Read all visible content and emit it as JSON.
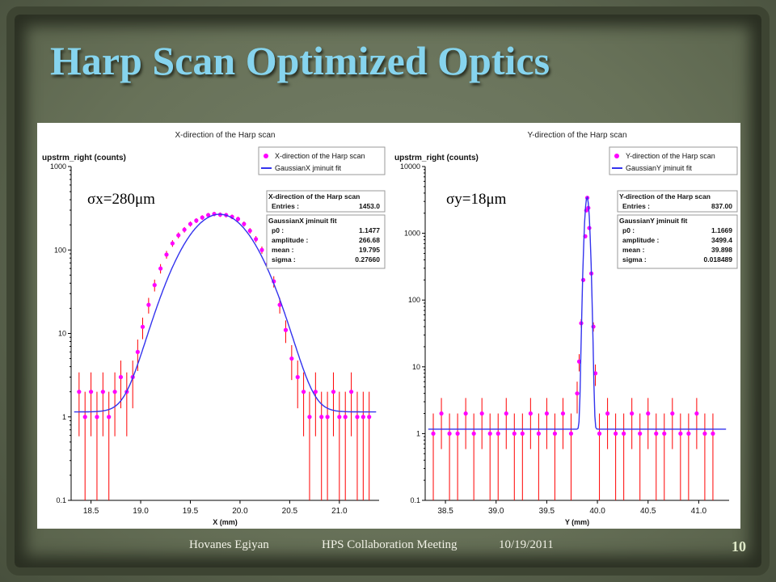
{
  "slide": {
    "title": "Harp Scan Optimized Optics",
    "footer_author": "Hovanes Egiyan",
    "footer_meeting": "HPS Collaboration Meeting",
    "footer_date": "10/19/2011",
    "page_number": "10"
  },
  "colors": {
    "title": "#86d4ee",
    "data_points": "#ff00ff",
    "error_bars": "#ff0000",
    "fit_line": "#3333ee"
  },
  "chart_data": [
    {
      "type": "scatter",
      "title": "X-direction of the Harp scan",
      "ylabel": "upstrm_right (counts)",
      "xlabel": "X (mm)",
      "log_y": true,
      "ylim": [
        0.1,
        1000
      ],
      "xlim": [
        18.3,
        21.4
      ],
      "xticks": [
        "18.5",
        "19.0",
        "19.5",
        "20.0",
        "20.5",
        "21.0"
      ],
      "yticks": [
        "0.1",
        "1",
        "10",
        "100",
        "1000"
      ],
      "annotation": "σx=280μm",
      "legend": {
        "placement": "top-right",
        "entries": [
          "X-direction of the Harp scan",
          "GaussianX jminuit fit"
        ]
      },
      "stats_box": {
        "title": "X-direction of the Harp scan",
        "rows": [
          {
            "label": "Entries :",
            "value": "1453.0"
          }
        ]
      },
      "fit_box": {
        "title": "GaussianX jminuit fit",
        "rows": [
          {
            "label": "p0 :",
            "value": "1.1477"
          },
          {
            "label": "amplitude :",
            "value": "266.68"
          },
          {
            "label": "mean :",
            "value": "19.795"
          },
          {
            "label": "sigma :",
            "value": "0.27660"
          }
        ]
      },
      "fit": {
        "p0": 1.1477,
        "amplitude": 266.68,
        "mean": 19.795,
        "sigma": 0.2766
      },
      "points": [
        {
          "x": 18.38,
          "y": 2.0
        },
        {
          "x": 18.44,
          "y": 1.0
        },
        {
          "x": 18.5,
          "y": 2.0
        },
        {
          "x": 18.56,
          "y": 1.0
        },
        {
          "x": 18.62,
          "y": 2.0
        },
        {
          "x": 18.68,
          "y": 1.0
        },
        {
          "x": 18.74,
          "y": 2.0
        },
        {
          "x": 18.8,
          "y": 3.0
        },
        {
          "x": 18.86,
          "y": 2.0
        },
        {
          "x": 18.92,
          "y": 3.0
        },
        {
          "x": 18.97,
          "y": 6.0
        },
        {
          "x": 19.02,
          "y": 12.0
        },
        {
          "x": 19.08,
          "y": 22.0
        },
        {
          "x": 19.14,
          "y": 38.0
        },
        {
          "x": 19.2,
          "y": 60.0
        },
        {
          "x": 19.26,
          "y": 88.0
        },
        {
          "x": 19.32,
          "y": 120.0
        },
        {
          "x": 19.38,
          "y": 150.0
        },
        {
          "x": 19.44,
          "y": 175.0
        },
        {
          "x": 19.5,
          "y": 205.0
        },
        {
          "x": 19.56,
          "y": 225.0
        },
        {
          "x": 19.62,
          "y": 245.0
        },
        {
          "x": 19.68,
          "y": 262.0
        },
        {
          "x": 19.74,
          "y": 270.0
        },
        {
          "x": 19.8,
          "y": 265.0
        },
        {
          "x": 19.86,
          "y": 262.0
        },
        {
          "x": 19.92,
          "y": 250.0
        },
        {
          "x": 19.98,
          "y": 235.0
        },
        {
          "x": 20.04,
          "y": 205.0
        },
        {
          "x": 20.1,
          "y": 170.0
        },
        {
          "x": 20.16,
          "y": 135.0
        },
        {
          "x": 20.22,
          "y": 100.0
        },
        {
          "x": 20.28,
          "y": 68.0
        },
        {
          "x": 20.34,
          "y": 42.0
        },
        {
          "x": 20.4,
          "y": 22.0
        },
        {
          "x": 20.46,
          "y": 11.0
        },
        {
          "x": 20.52,
          "y": 5.0
        },
        {
          "x": 20.58,
          "y": 3.0
        },
        {
          "x": 20.64,
          "y": 2.0
        },
        {
          "x": 20.7,
          "y": 1.0
        },
        {
          "x": 20.76,
          "y": 2.0
        },
        {
          "x": 20.82,
          "y": 1.0
        },
        {
          "x": 20.88,
          "y": 1.0
        },
        {
          "x": 20.94,
          "y": 2.0
        },
        {
          "x": 21.0,
          "y": 1.0
        },
        {
          "x": 21.06,
          "y": 1.0
        },
        {
          "x": 21.12,
          "y": 2.0
        },
        {
          "x": 21.18,
          "y": 1.0
        },
        {
          "x": 21.24,
          "y": 1.0
        },
        {
          "x": 21.3,
          "y": 1.0
        }
      ]
    },
    {
      "type": "scatter",
      "title": "Y-direction of the Harp scan",
      "ylabel": "upstrm_right (counts)",
      "xlabel": "Y (mm)",
      "log_y": true,
      "ylim": [
        0.1,
        10000
      ],
      "xlim": [
        38.3,
        41.3
      ],
      "xticks": [
        "38.5",
        "39.0",
        "39.5",
        "40.0",
        "40.5",
        "41.0"
      ],
      "yticks": [
        "0.1",
        "1",
        "10",
        "100",
        "1000",
        "10000"
      ],
      "annotation": "σy=18μm",
      "legend": {
        "placement": "top-right",
        "entries": [
          "Y-direction of the Harp scan",
          "GaussianY jminuit fit"
        ]
      },
      "stats_box": {
        "title": "Y-direction of the Harp scan",
        "rows": [
          {
            "label": "Entries :",
            "value": "837.00"
          }
        ]
      },
      "fit_box": {
        "title": "GaussianY jminuit fit",
        "rows": [
          {
            "label": "p0 :",
            "value": "1.1669"
          },
          {
            "label": "amplitude :",
            "value": "3499.4"
          },
          {
            "label": "mean :",
            "value": "39.898"
          },
          {
            "label": "sigma :",
            "value": "0.018489"
          }
        ]
      },
      "fit": {
        "p0": 1.1669,
        "amplitude": 3499.4,
        "mean": 39.898,
        "sigma": 0.018489
      },
      "points": [
        {
          "x": 38.38,
          "y": 1.0
        },
        {
          "x": 38.46,
          "y": 2.0
        },
        {
          "x": 38.54,
          "y": 1.0
        },
        {
          "x": 38.62,
          "y": 1.0
        },
        {
          "x": 38.7,
          "y": 2.0
        },
        {
          "x": 38.78,
          "y": 1.0
        },
        {
          "x": 38.86,
          "y": 2.0
        },
        {
          "x": 38.94,
          "y": 1.0
        },
        {
          "x": 39.02,
          "y": 1.0
        },
        {
          "x": 39.1,
          "y": 2.0
        },
        {
          "x": 39.18,
          "y": 1.0
        },
        {
          "x": 39.26,
          "y": 1.0
        },
        {
          "x": 39.34,
          "y": 2.0
        },
        {
          "x": 39.42,
          "y": 1.0
        },
        {
          "x": 39.5,
          "y": 2.0
        },
        {
          "x": 39.58,
          "y": 1.0
        },
        {
          "x": 39.66,
          "y": 2.0
        },
        {
          "x": 39.74,
          "y": 1.0
        },
        {
          "x": 39.8,
          "y": 4.0
        },
        {
          "x": 39.82,
          "y": 12.0
        },
        {
          "x": 39.84,
          "y": 45.0
        },
        {
          "x": 39.86,
          "y": 200.0
        },
        {
          "x": 39.88,
          "y": 900.0
        },
        {
          "x": 39.89,
          "y": 2200.0
        },
        {
          "x": 39.9,
          "y": 3400.0
        },
        {
          "x": 39.91,
          "y": 2400.0
        },
        {
          "x": 39.92,
          "y": 1200.0
        },
        {
          "x": 39.94,
          "y": 250.0
        },
        {
          "x": 39.96,
          "y": 40.0
        },
        {
          "x": 39.98,
          "y": 8.0
        },
        {
          "x": 40.02,
          "y": 1.0
        },
        {
          "x": 40.1,
          "y": 2.0
        },
        {
          "x": 40.18,
          "y": 1.0
        },
        {
          "x": 40.26,
          "y": 1.0
        },
        {
          "x": 40.34,
          "y": 2.0
        },
        {
          "x": 40.42,
          "y": 1.0
        },
        {
          "x": 40.5,
          "y": 2.0
        },
        {
          "x": 40.58,
          "y": 1.0
        },
        {
          "x": 40.66,
          "y": 1.0
        },
        {
          "x": 40.74,
          "y": 2.0
        },
        {
          "x": 40.82,
          "y": 1.0
        },
        {
          "x": 40.9,
          "y": 1.0
        },
        {
          "x": 40.98,
          "y": 2.0
        },
        {
          "x": 41.06,
          "y": 1.0
        },
        {
          "x": 41.14,
          "y": 1.0
        }
      ]
    }
  ]
}
